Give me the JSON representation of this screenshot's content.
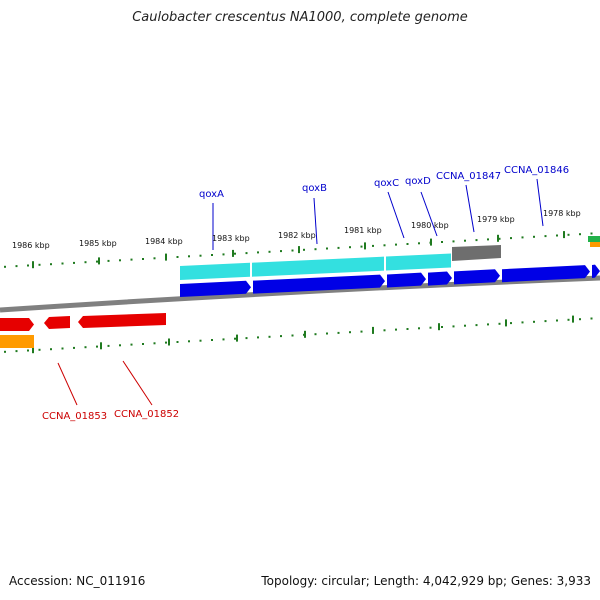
{
  "title": "Caulobacter crescentus NA1000, complete genome",
  "footer": {
    "accession": "Accession: NC_011916",
    "summary": "Topology: circular; Length: 4,042,929 bp; Genes: 3,933"
  },
  "colors": {
    "background": "#ffffff",
    "backbone": "#808080",
    "tick": "#1f7a1f",
    "forward_cds": "#0000e6",
    "forward_gene": "#33e0e0",
    "forward_rna": "#6e6e6e",
    "reverse_cds": "#e60000",
    "reverse_gene": "#ff9a00",
    "label_forward": "#0000cc",
    "label_reverse": "#cc0000"
  },
  "scale_labels": [
    "1986 kbp",
    "1985 kbp",
    "1984 kbp",
    "1983 kbp",
    "1982 kbp",
    "1981 kbp",
    "1980 kbp",
    "1979 kbp",
    "1978 kbp"
  ],
  "forward_labels": [
    "qoxA",
    "qoxB",
    "qoxC",
    "qoxD",
    "CCNA_01847",
    "CCNA_01846"
  ],
  "reverse_labels": [
    "CCNA_01853",
    "CCNA_01852"
  ]
}
